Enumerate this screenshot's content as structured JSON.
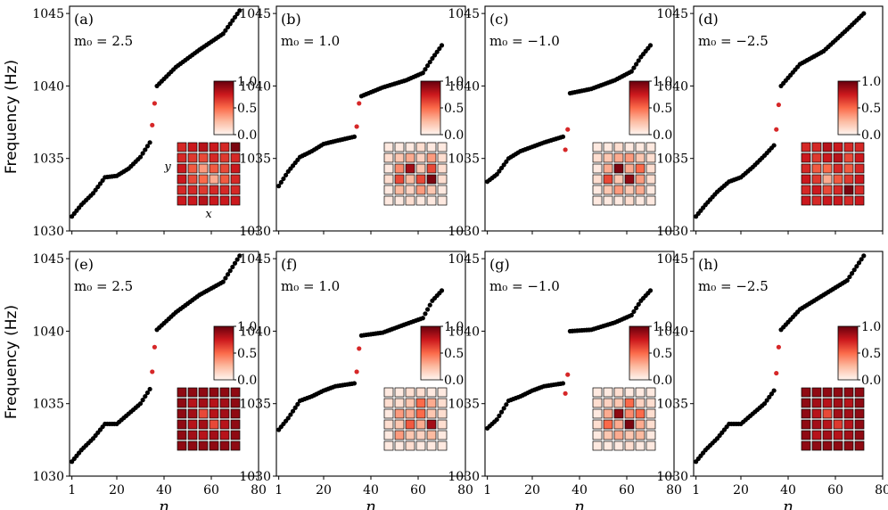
{
  "figure": {
    "ylabel": "Frequency (Hz)",
    "xlabel": "n"
  },
  "colors": {
    "bulk_point": "#000000",
    "edge_point": "#d62728",
    "cmap_low": "#fff5f0",
    "cmap_high": "#67000d"
  },
  "chart_data": [
    {
      "type": "scatter",
      "panel": "(a)",
      "param": "m₀ = 2.5",
      "ylim": [
        1030,
        1045.5
      ],
      "xlim": [
        0,
        80
      ],
      "xticks": [
        1,
        20,
        40,
        60,
        80
      ],
      "yticks": [
        1030,
        1035,
        1040,
        1045
      ],
      "edge_points": [
        [
          35,
          1037.3
        ],
        [
          36,
          1038.8
        ]
      ],
      "bulk_knots": [
        [
          1,
          1031.0
        ],
        [
          5,
          1031.8
        ],
        [
          10,
          1032.6
        ],
        [
          15,
          1033.7
        ],
        [
          20,
          1033.8
        ],
        [
          25,
          1034.3
        ],
        [
          30,
          1035.1
        ],
        [
          34,
          1036.1
        ],
        [
          37,
          1040.0
        ],
        [
          45,
          1041.3
        ],
        [
          55,
          1042.5
        ],
        [
          65,
          1043.6
        ],
        [
          72,
          1045.2
        ]
      ],
      "inset": {
        "xlabel": "x",
        "ylabel": "y",
        "colorbar_ticks": [
          "0.0",
          "0.5",
          "1.0"
        ],
        "grid": [
          [
            0.7,
            0.75,
            0.8,
            0.75,
            0.7,
            0.95
          ],
          [
            0.7,
            0.65,
            0.6,
            0.7,
            0.65,
            0.7
          ],
          [
            0.75,
            0.55,
            0.35,
            0.55,
            0.6,
            0.75
          ],
          [
            0.75,
            0.6,
            0.5,
            0.3,
            0.55,
            0.7
          ],
          [
            0.7,
            0.7,
            0.65,
            0.7,
            0.7,
            0.7
          ],
          [
            0.75,
            0.75,
            0.8,
            0.75,
            0.75,
            0.75
          ]
        ]
      }
    },
    {
      "type": "scatter",
      "panel": "(b)",
      "param": "m₀ = 1.0",
      "ylim": [
        1030,
        1045.5
      ],
      "xlim": [
        0,
        80
      ],
      "xticks": [
        1,
        20,
        40,
        60,
        80
      ],
      "yticks": [
        1030,
        1035,
        1040,
        1045
      ],
      "edge_points": [
        [
          34,
          1037.2
        ],
        [
          35,
          1038.8
        ]
      ],
      "bulk_knots": [
        [
          1,
          1033.1
        ],
        [
          5,
          1034.1
        ],
        [
          10,
          1035.1
        ],
        [
          15,
          1035.5
        ],
        [
          20,
          1036.0
        ],
        [
          25,
          1036.2
        ],
        [
          33,
          1036.5
        ],
        [
          36,
          1039.3
        ],
        [
          45,
          1039.9
        ],
        [
          55,
          1040.4
        ],
        [
          62,
          1040.9
        ],
        [
          66,
          1041.9
        ],
        [
          70,
          1042.8
        ]
      ],
      "inset": {
        "colorbar_ticks": [
          "0.0",
          "0.5",
          "1.0"
        ],
        "grid": [
          [
            0.05,
            0.05,
            0.05,
            0.1,
            0.05,
            0.05
          ],
          [
            0.1,
            0.2,
            0.3,
            0.15,
            0.35,
            0.1
          ],
          [
            0.05,
            0.4,
            0.85,
            0.2,
            0.6,
            0.1
          ],
          [
            0.1,
            0.6,
            0.25,
            0.6,
            0.95,
            0.1
          ],
          [
            0.05,
            0.25,
            0.15,
            0.35,
            0.2,
            0.05
          ],
          [
            0.05,
            0.05,
            0.1,
            0.05,
            0.05,
            0.05
          ]
        ]
      }
    },
    {
      "type": "scatter",
      "panel": "(c)",
      "param": "m₀ = −1.0",
      "ylim": [
        1030,
        1045.5
      ],
      "xlim": [
        0,
        80
      ],
      "xticks": [
        1,
        20,
        40,
        60,
        80
      ],
      "yticks": [
        1030,
        1035,
        1040,
        1045
      ],
      "edge_points": [
        [
          34,
          1035.6
        ],
        [
          35,
          1037.0
        ]
      ],
      "bulk_knots": [
        [
          1,
          1033.4
        ],
        [
          5,
          1033.9
        ],
        [
          10,
          1035.0
        ],
        [
          15,
          1035.5
        ],
        [
          20,
          1035.8
        ],
        [
          25,
          1036.1
        ],
        [
          33,
          1036.5
        ],
        [
          36,
          1039.5
        ],
        [
          45,
          1039.8
        ],
        [
          55,
          1040.4
        ],
        [
          62,
          1041.0
        ],
        [
          66,
          1042.0
        ],
        [
          70,
          1042.8
        ]
      ],
      "inset": {
        "colorbar_ticks": [
          "0.0",
          "0.5",
          "1.0"
        ],
        "grid": [
          [
            0.05,
            0.05,
            0.1,
            0.05,
            0.05,
            0.05
          ],
          [
            0.1,
            0.2,
            0.3,
            0.35,
            0.2,
            0.1
          ],
          [
            0.05,
            0.3,
            0.95,
            0.3,
            0.5,
            0.1
          ],
          [
            0.1,
            0.6,
            0.2,
            0.9,
            0.35,
            0.1
          ],
          [
            0.05,
            0.2,
            0.35,
            0.2,
            0.3,
            0.05
          ],
          [
            0.05,
            0.05,
            0.05,
            0.1,
            0.05,
            0.05
          ]
        ]
      }
    },
    {
      "type": "scatter",
      "panel": "(d)",
      "param": "m₀ = −2.5",
      "ylim": [
        1030,
        1045.5
      ],
      "xlim": [
        0,
        80
      ],
      "xticks": [
        1,
        20,
        40,
        60,
        80
      ],
      "yticks": [
        1030,
        1035,
        1040,
        1045
      ],
      "edge_points": [
        [
          35,
          1037.0
        ],
        [
          36,
          1038.7
        ]
      ],
      "bulk_knots": [
        [
          1,
          1031.0
        ],
        [
          5,
          1031.8
        ],
        [
          10,
          1032.7
        ],
        [
          15,
          1033.4
        ],
        [
          20,
          1033.7
        ],
        [
          25,
          1034.4
        ],
        [
          30,
          1035.2
        ],
        [
          34,
          1035.9
        ],
        [
          37,
          1040.0
        ],
        [
          45,
          1041.5
        ],
        [
          55,
          1042.4
        ],
        [
          65,
          1043.9
        ],
        [
          72,
          1045.0
        ]
      ],
      "inset": {
        "colorbar_ticks": [
          "0.0",
          "0.5",
          "1.0"
        ],
        "grid": [
          [
            0.7,
            0.7,
            0.8,
            0.75,
            0.7,
            0.7
          ],
          [
            0.75,
            0.65,
            0.75,
            0.8,
            0.6,
            0.75
          ],
          [
            0.7,
            0.55,
            0.5,
            0.7,
            0.55,
            0.7
          ],
          [
            0.75,
            0.65,
            0.3,
            0.55,
            0.65,
            0.75
          ],
          [
            0.7,
            0.75,
            0.6,
            0.7,
            0.95,
            0.7
          ],
          [
            0.75,
            0.7,
            0.75,
            0.75,
            0.7,
            0.75
          ]
        ]
      }
    },
    {
      "type": "scatter",
      "panel": "(e)",
      "param": "m₀ = 2.5",
      "ylim": [
        1030,
        1045.5
      ],
      "xlim": [
        0,
        80
      ],
      "xticks": [
        1,
        20,
        40,
        60,
        80
      ],
      "yticks": [
        1030,
        1035,
        1040,
        1045
      ],
      "edge_points": [
        [
          35,
          1037.2
        ],
        [
          36,
          1038.9
        ]
      ],
      "bulk_knots": [
        [
          1,
          1031.0
        ],
        [
          5,
          1031.8
        ],
        [
          10,
          1032.6
        ],
        [
          15,
          1033.6
        ],
        [
          20,
          1033.6
        ],
        [
          25,
          1034.3
        ],
        [
          30,
          1035.0
        ],
        [
          34,
          1036.0
        ],
        [
          37,
          1040.1
        ],
        [
          45,
          1041.3
        ],
        [
          55,
          1042.5
        ],
        [
          65,
          1043.4
        ],
        [
          72,
          1045.2
        ]
      ],
      "inset": {
        "colorbar_ticks": [
          "0.0",
          "0.5",
          "1.0"
        ],
        "grid": [
          [
            0.9,
            0.9,
            0.9,
            0.9,
            0.9,
            0.9
          ],
          [
            0.9,
            0.8,
            0.85,
            0.8,
            0.85,
            0.9
          ],
          [
            0.9,
            0.85,
            0.6,
            0.8,
            0.85,
            0.9
          ],
          [
            0.9,
            0.8,
            0.85,
            0.6,
            0.8,
            0.9
          ],
          [
            0.9,
            0.85,
            0.8,
            0.85,
            0.8,
            0.9
          ],
          [
            0.9,
            0.9,
            0.9,
            0.9,
            0.9,
            0.9
          ]
        ]
      }
    },
    {
      "type": "scatter",
      "panel": "(f)",
      "param": "m₀ = 1.0",
      "ylim": [
        1030,
        1045.5
      ],
      "xlim": [
        0,
        80
      ],
      "xticks": [
        1,
        20,
        40,
        60,
        80
      ],
      "yticks": [
        1030,
        1035,
        1040,
        1045
      ],
      "edge_points": [
        [
          34,
          1037.2
        ],
        [
          35,
          1038.8
        ]
      ],
      "bulk_knots": [
        [
          1,
          1033.2
        ],
        [
          5,
          1034.0
        ],
        [
          10,
          1035.2
        ],
        [
          15,
          1035.5
        ],
        [
          20,
          1035.9
        ],
        [
          25,
          1036.2
        ],
        [
          33,
          1036.4
        ],
        [
          36,
          1039.7
        ],
        [
          45,
          1039.9
        ],
        [
          55,
          1040.5
        ],
        [
          62,
          1040.9
        ],
        [
          66,
          1042.1
        ],
        [
          70,
          1042.8
        ]
      ],
      "inset": {
        "colorbar_ticks": [
          "0.0",
          "0.5",
          "1.0"
        ],
        "grid": [
          [
            0.05,
            0.05,
            0.1,
            0.1,
            0.05,
            0.05
          ],
          [
            0.1,
            0.1,
            0.2,
            0.5,
            0.3,
            0.1
          ],
          [
            0.05,
            0.35,
            0.3,
            0.5,
            0.2,
            0.1
          ],
          [
            0.1,
            0.2,
            0.55,
            0.3,
            0.85,
            0.1
          ],
          [
            0.05,
            0.35,
            0.2,
            0.15,
            0.25,
            0.05
          ],
          [
            0.05,
            0.05,
            0.1,
            0.05,
            0.05,
            0.05
          ]
        ]
      }
    },
    {
      "type": "scatter",
      "panel": "(g)",
      "param": "m₀ = −1.0",
      "ylim": [
        1030,
        1045.5
      ],
      "xlim": [
        0,
        80
      ],
      "xticks": [
        1,
        20,
        40,
        60,
        80
      ],
      "yticks": [
        1030,
        1035,
        1040,
        1045
      ],
      "edge_points": [
        [
          34,
          1035.7
        ],
        [
          35,
          1037.0
        ]
      ],
      "bulk_knots": [
        [
          1,
          1033.3
        ],
        [
          5,
          1033.9
        ],
        [
          10,
          1035.2
        ],
        [
          15,
          1035.5
        ],
        [
          20,
          1035.9
        ],
        [
          25,
          1036.2
        ],
        [
          33,
          1036.4
        ],
        [
          36,
          1040.0
        ],
        [
          45,
          1040.1
        ],
        [
          55,
          1040.6
        ],
        [
          62,
          1041.1
        ],
        [
          66,
          1042.1
        ],
        [
          70,
          1042.8
        ]
      ],
      "inset": {
        "colorbar_ticks": [
          "0.0",
          "0.5",
          "1.0"
        ],
        "grid": [
          [
            0.05,
            0.05,
            0.1,
            0.05,
            0.05,
            0.05
          ],
          [
            0.1,
            0.15,
            0.2,
            0.5,
            0.15,
            0.1
          ],
          [
            0.05,
            0.3,
            0.9,
            0.4,
            0.5,
            0.1
          ],
          [
            0.1,
            0.5,
            0.3,
            0.95,
            0.3,
            0.1
          ],
          [
            0.05,
            0.2,
            0.3,
            0.2,
            0.25,
            0.05
          ],
          [
            0.05,
            0.05,
            0.05,
            0.1,
            0.05,
            0.05
          ]
        ]
      }
    },
    {
      "type": "scatter",
      "panel": "(h)",
      "param": "m₀ = −2.5",
      "ylim": [
        1030,
        1045.5
      ],
      "xlim": [
        0,
        80
      ],
      "xticks": [
        1,
        20,
        40,
        60,
        80
      ],
      "yticks": [
        1030,
        1035,
        1040,
        1045
      ],
      "edge_points": [
        [
          35,
          1037.1
        ],
        [
          36,
          1038.9
        ]
      ],
      "bulk_knots": [
        [
          1,
          1031.0
        ],
        [
          5,
          1031.8
        ],
        [
          10,
          1032.6
        ],
        [
          15,
          1033.6
        ],
        [
          20,
          1033.6
        ],
        [
          25,
          1034.3
        ],
        [
          30,
          1035.0
        ],
        [
          34,
          1035.9
        ],
        [
          37,
          1040.1
        ],
        [
          45,
          1041.5
        ],
        [
          55,
          1042.5
        ],
        [
          65,
          1043.5
        ],
        [
          72,
          1045.2
        ]
      ],
      "inset": {
        "colorbar_ticks": [
          "0.0",
          "0.5",
          "1.0"
        ],
        "grid": [
          [
            0.9,
            0.9,
            0.9,
            0.9,
            0.9,
            0.9
          ],
          [
            0.9,
            0.85,
            0.8,
            0.85,
            0.8,
            0.9
          ],
          [
            0.9,
            0.8,
            0.6,
            0.85,
            0.85,
            0.9
          ],
          [
            0.9,
            0.85,
            0.8,
            0.65,
            0.8,
            0.9
          ],
          [
            0.9,
            0.8,
            0.85,
            0.8,
            0.85,
            0.9
          ],
          [
            0.9,
            0.9,
            0.9,
            0.9,
            0.9,
            0.9
          ]
        ]
      }
    }
  ]
}
